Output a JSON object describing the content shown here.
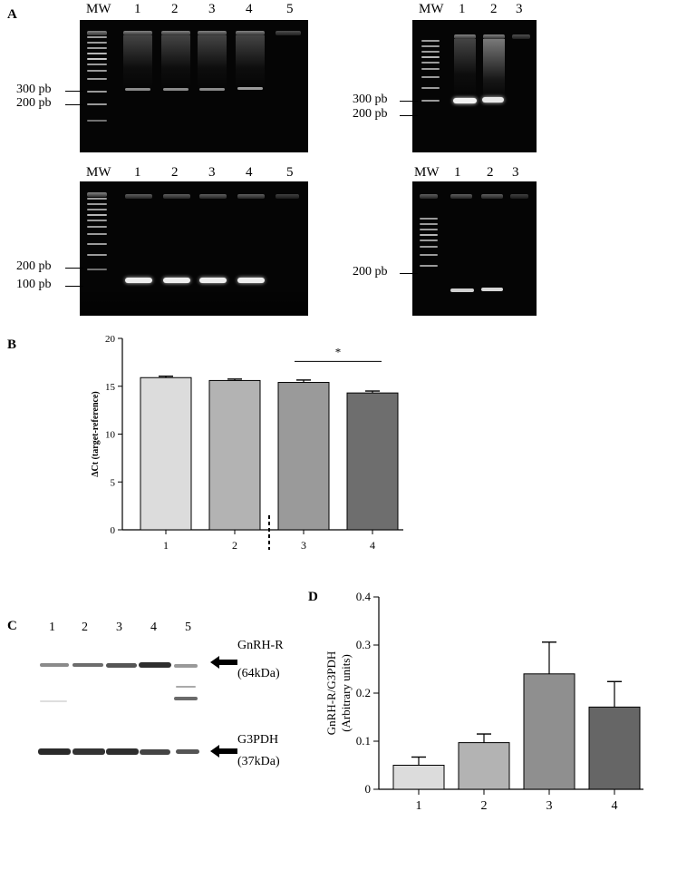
{
  "panels": {
    "a": "A",
    "b": "B",
    "c": "C",
    "d": "D"
  },
  "gels": {
    "top_left": {
      "lanes": [
        "MW",
        "1",
        "2",
        "3",
        "4",
        "5"
      ],
      "markers": [
        "300 pb",
        "200 pb"
      ]
    },
    "top_right": {
      "lanes": [
        "MW",
        "1",
        "2",
        "3"
      ],
      "markers": [
        "300 pb",
        "200 pb"
      ]
    },
    "bottom_left": {
      "lanes": [
        "MW",
        "1",
        "2",
        "3",
        "4",
        "5"
      ],
      "markers": [
        "200 pb",
        "100 pb"
      ]
    },
    "bottom_right": {
      "lanes": [
        "MW",
        "1",
        "2",
        "3"
      ],
      "markers": [
        "200 pb"
      ]
    }
  },
  "western_blot": {
    "lanes": [
      "1",
      "2",
      "3",
      "4",
      "5"
    ],
    "labels": {
      "target": "GnRH-R",
      "target_size": "(64kDa)",
      "reference": "G3PDH",
      "reference_size": "(37kDa)"
    }
  },
  "chart_data": [
    {
      "panel": "B",
      "type": "bar",
      "categories": [
        "1",
        "2",
        "3",
        "4"
      ],
      "values": [
        15.9,
        15.6,
        15.4,
        14.3
      ],
      "errors": [
        0.15,
        0.15,
        0.25,
        0.2
      ],
      "ylabel": "ΔCt (target-reference)",
      "ylim": [
        0,
        20
      ],
      "yticks": [
        "0",
        "5",
        "10",
        "15",
        "20"
      ],
      "colors": [
        "#dcdcdc",
        "#b3b3b3",
        "#9a9a9a",
        "#6e6e6e"
      ],
      "significance": "*"
    },
    {
      "panel": "D",
      "type": "bar",
      "categories": [
        "1",
        "2",
        "3",
        "4"
      ],
      "values": [
        0.05,
        0.097,
        0.24,
        0.171
      ],
      "errors": [
        0.017,
        0.018,
        0.066,
        0.053
      ],
      "ylabel": "GnRH-R/G3PDH",
      "ylabel2": "(Arbitrary units)",
      "ylim": [
        0,
        0.4
      ],
      "yticks": [
        "0",
        "0.1",
        "0.2",
        "0.3",
        "0.4"
      ],
      "colors": [
        "#dcdcdc",
        "#b3b3b3",
        "#8f8f8f",
        "#666666"
      ]
    }
  ]
}
